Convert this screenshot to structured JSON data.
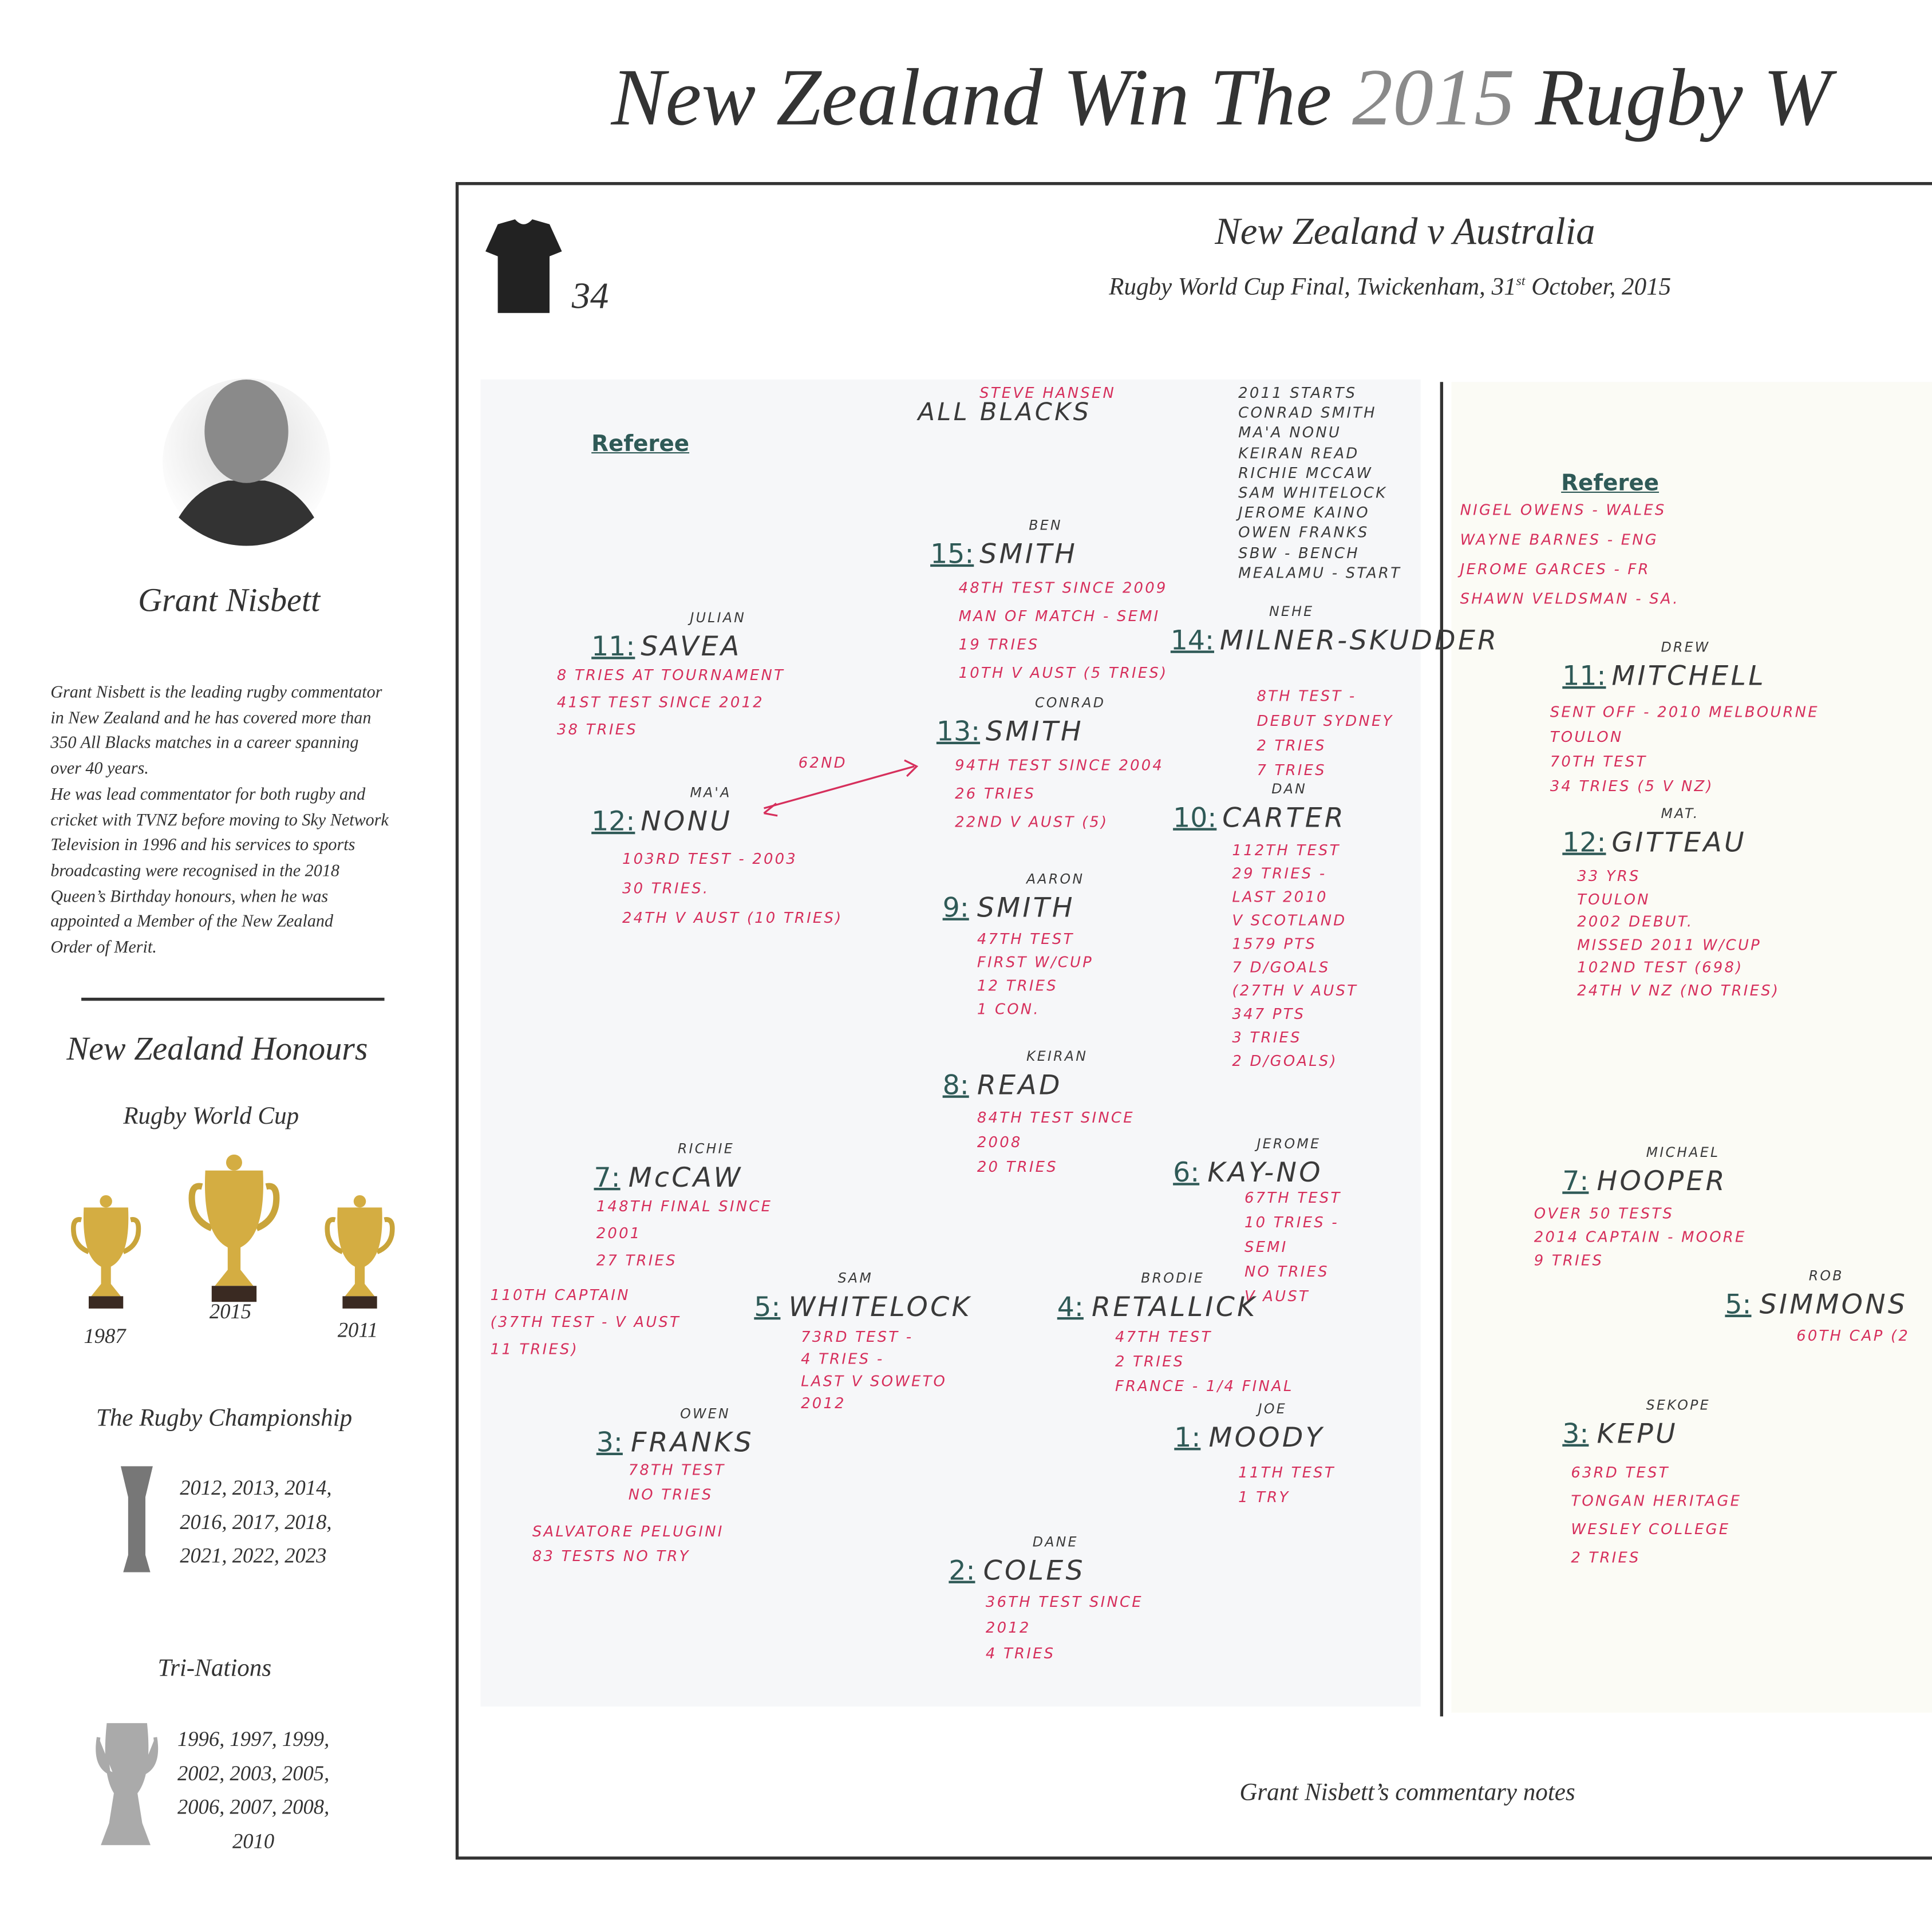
{
  "header": {
    "title_start": "New Zealand Win The",
    "title_year": "2015",
    "title_end": "Rugby W"
  },
  "profile": {
    "name": "Grant Nisbett",
    "bio": [
      "Grant Nisbett is the leading rugby commentator",
      "in New Zealand and he has covered more than",
      "350 All Blacks matches in a career spanning",
      "over 40 years.",
      "He was lead commentator for both rugby and",
      "cricket with TVNZ before moving to Sky Network",
      "Television in 1996 and his services to sports",
      "broadcasting were recognised in the 2018",
      "Queen’s Birthday honours, when he was",
      "appointed a Member of the New Zealand",
      "Order of Merit."
    ]
  },
  "honours": {
    "title": "New Zealand Honours",
    "rwc": {
      "title": "Rugby World Cup",
      "years": [
        "1987",
        "2015",
        "2011"
      ]
    },
    "championship": {
      "title": "The Rugby Championship",
      "years": [
        "2012, 2013, 2014,",
        "2016, 2017, 2018,",
        "2021, 2022, 2023"
      ]
    },
    "tri_nations": {
      "title": "Tri-Nations",
      "years": [
        "1996, 1997, 1999,",
        "2002, 2003, 2005,",
        "2006, 2007, 2008,",
        "2010"
      ]
    }
  },
  "frame": {
    "shirt_number": "34",
    "match": "New Zealand v Australia",
    "subtitle_start": "Rugby World Cup Final, Twickenham, 31",
    "subtitle_sup": "st",
    "subtitle_end": " October, 2015",
    "caption": "Grant Nisbett’s commentary notes"
  },
  "notes_nz": {
    "referee": "Referee",
    "team": "ALL BLACKS",
    "coach": "STEVE HANSEN",
    "starts": [
      "2011 STARTS",
      "CONRAD SMITH",
      "MA'A NONU",
      "KEIRAN READ",
      "RICHIE McCAW",
      "SAM WHITELOCK",
      "JEROME KAINO",
      "OWEN FRANKS",
      "SBW - BENCH",
      "MEALAMU - START"
    ],
    "players": [
      {
        "number": "15:",
        "first": "BEN",
        "surname": "SMITH",
        "notes": [
          "48th TEST SINCE 2009",
          "MAN OF MATCH - SEMI",
          "19 TRIES",
          "10th v AUST (5 TRIES)"
        ]
      },
      {
        "number": "11:",
        "first": "JULIAN",
        "surname": "SAVEA",
        "notes": [
          "8 TRIES AT TOURNAMENT",
          "41ST TEST SINCE 2012",
          "38 TRIES"
        ]
      },
      {
        "number": "14:",
        "first": "NEHE",
        "surname": "MILNER-SKUDDER",
        "notes": [
          "8th TEST -",
          "debut SYDNEY",
          "2 TRIES",
          "7 TRIES"
        ]
      },
      {
        "number": "13:",
        "first": "CONRAD",
        "surname": "SMITH",
        "notes": [
          "94th TEST SINCE 2004",
          "26 TRIES",
          "22ND v AUST (5)"
        ]
      },
      {
        "number": "12:",
        "first": "MA'A",
        "surname": "NONU",
        "notes": [
          "103RD TEST - 2003",
          "30 TRIES.",
          "24th v AUST (10 TRIES)"
        ]
      },
      {
        "number": "10:",
        "first": "DAN",
        "surname": "CARTER",
        "notes": [
          "112th TEST",
          "29 TRIES -",
          "LAST 2010",
          "v SCOTLAND",
          "1579 PTS",
          "7 D/GOALS",
          "(27th v AUST",
          "347 PTS",
          "3 TRIES",
          "2 D/GOALS)"
        ]
      },
      {
        "number": "9:",
        "first": "AARON",
        "surname": "SMITH",
        "notes": [
          "47th TEST",
          "FIRST W/CUP",
          "12 TRIES",
          "1 CON."
        ]
      },
      {
        "number": "8:",
        "first": "KEIRAN",
        "surname": "READ",
        "notes": [
          "84th TEST SINCE",
          "2008",
          "20 TRIES"
        ]
      },
      {
        "number": "7:",
        "first": "RICHIE",
        "surname": "McCAW",
        "notes": [
          "148th FINAL SINCE",
          "2001",
          "27 TRIES"
        ]
      },
      {
        "number": "6:",
        "first": "JEROME",
        "surname": "KAY-NO",
        "notes": [
          "67th TEST",
          "10 TRIES -",
          "SEMI",
          "NO TRIES",
          "v AUST"
        ]
      },
      {
        "number": "5:",
        "first": "SAM",
        "surname": "WHITELOCK",
        "notes": [
          "73RD TEST -",
          "4 TRIES -",
          "LAST v SOWETO",
          "2012"
        ]
      },
      {
        "number": "4:",
        "first": "BRODIE",
        "surname": "RETALLICK",
        "notes": [
          "47th TEST",
          "2 TRIES",
          "FRANCE - 1/4 FINAL"
        ]
      },
      {
        "number": "3:",
        "first": "OWEN",
        "surname": "FRANKS",
        "notes": [
          "78th TEST",
          "NO TRIES"
        ]
      },
      {
        "number": "1:",
        "first": "JOE",
        "surname": "MOODY",
        "notes": [
          "11th TEST",
          "1 TRY"
        ]
      },
      {
        "number": "2:",
        "first": "DANE",
        "surname": "COLES",
        "notes": [
          "36th TEST SINCE",
          "2012",
          "4 TRIES"
        ]
      }
    ],
    "extras": [
      {
        "lines": [
          "110th CAPTAIN",
          "(37th TEST - v AUST",
          "11 TRIES)"
        ]
      },
      {
        "lines": [
          "SALVATORE PELUGINI",
          "83 TESTS NO TRY"
        ]
      },
      {
        "lines": [
          "62ND"
        ]
      }
    ]
  },
  "notes_aus": {
    "referee": "Referee",
    "referees": [
      "NIGEL OWENS - WALES",
      "WAYNE BARNES - ENG",
      "JEROME GARCES - FR",
      "SHAWN VELDSMAN - SA."
    ],
    "players": [
      {
        "number": "11:",
        "first": "DREW",
        "surname": "MITCHELL",
        "notes": [
          "SENT OFF - 2010 MELBOURNE",
          "TOULON",
          "70th TEST",
          "34 TRIES (5 v NZ)"
        ]
      },
      {
        "number": "12:",
        "first": "MAT.",
        "surname": "GITTEAU",
        "notes": [
          "33 YRS",
          "TOULON",
          "2002 DEBUT.",
          "MISSED 2011 W/CUP",
          "102ND TEST (698)",
          "24th v NZ (NO TRIES)"
        ]
      },
      {
        "number": "7:",
        "first": "MICHAEL",
        "surname": "HOOPER",
        "notes": [
          "OVER 50 TESTS",
          "2014 CAPTAIN - MOORE",
          "9 TRIES"
        ]
      },
      {
        "number": "5:",
        "first": "ROB",
        "surname": "SIMMONS",
        "notes": [
          "60th CAP (2"
        ]
      },
      {
        "number": "3:",
        "first": "SEKOPE",
        "surname": "KEPU",
        "notes": [
          "63RD TEST",
          "TONGAN HERITAGE",
          "WESLEY COLLEGE",
          "2 TRIES"
        ]
      }
    ]
  }
}
